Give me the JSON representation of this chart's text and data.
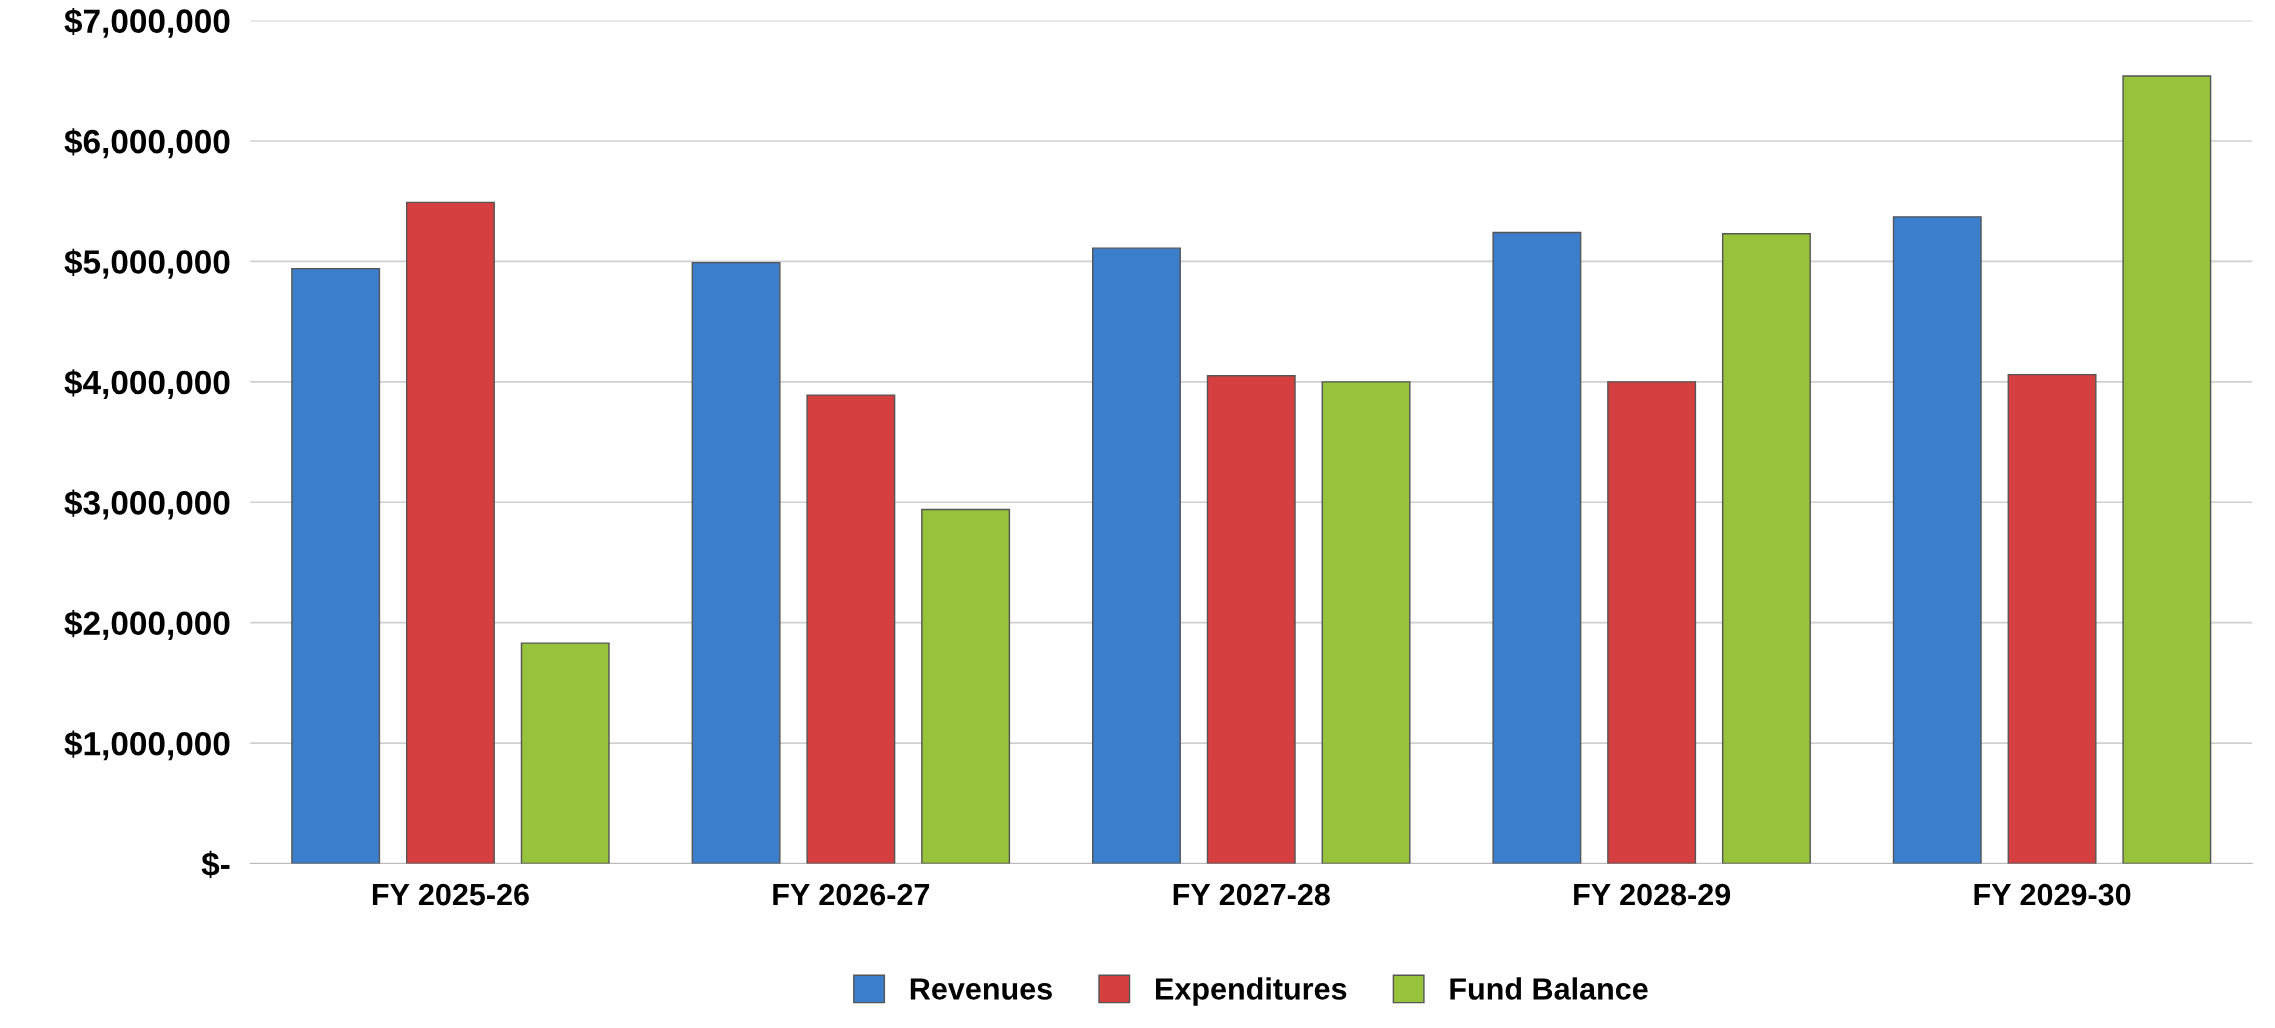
{
  "chart_data": {
    "type": "bar",
    "categories": [
      "FY 2025-26",
      "FY 2026-27",
      "FY 2027-28",
      "FY 2028-29",
      "FY 2029-30"
    ],
    "series": [
      {
        "name": "Revenues",
        "color": "#3b7fcc",
        "values": [
          4940000,
          4990000,
          5110000,
          5240000,
          5370000
        ]
      },
      {
        "name": "Expenditures",
        "color": "#d63f3f",
        "values": [
          5490000,
          3890000,
          4050000,
          4000000,
          4060000
        ]
      },
      {
        "name": "Fund Balance",
        "color": "#97c23c",
        "values": [
          1830000,
          2940000,
          4000000,
          5230000,
          6540000
        ]
      }
    ],
    "ylim": [
      0,
      7000000
    ],
    "yticks": [
      {
        "value": 0,
        "label": "$-"
      },
      {
        "value": 1000000,
        "label": "$1,000,000"
      },
      {
        "value": 2000000,
        "label": "$2,000,000"
      },
      {
        "value": 3000000,
        "label": "$3,000,000"
      },
      {
        "value": 4000000,
        "label": "$4,000,000"
      },
      {
        "value": 5000000,
        "label": "$5,000,000"
      },
      {
        "value": 6000000,
        "label": "$6,000,000"
      },
      {
        "value": 7000000,
        "label": "$7,000,000"
      }
    ],
    "grid": "y",
    "legend": "bottom"
  }
}
